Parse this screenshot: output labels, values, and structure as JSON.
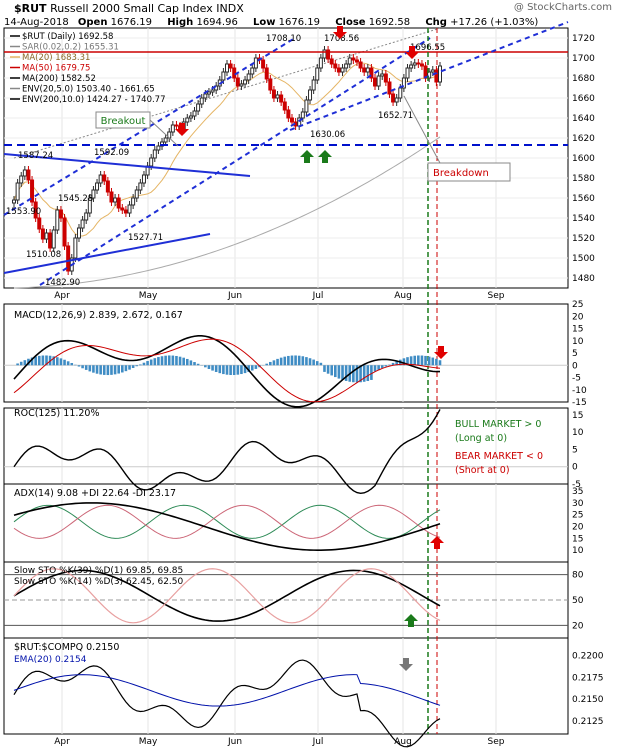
{
  "header": {
    "symbol": "$RUT",
    "name": "Russell 2000 Small Cap Index",
    "exchange": "INDX",
    "source": "@ StockCharts.com",
    "date": "14-Aug-2018",
    "open_label": "Open",
    "open": "1676.19",
    "high_label": "High",
    "high": "1694.96",
    "low_label": "Low",
    "low": "1676.19",
    "close_label": "Close",
    "close": "1692.58",
    "chg_label": "Chg",
    "chg": "+17.26 (+1.03%)"
  },
  "colors": {
    "price_up": "#2b2b2b",
    "price_down": "#cc0000",
    "ma20": "#e5b565",
    "ma50": "#cc0000",
    "ma200": "#555555",
    "trendline": "#1f2fd6",
    "resistance": "#cc0000",
    "support": "#0011cc",
    "macd_hist": "#3f8cc4",
    "green_arrow": "#1a7a1a",
    "red_arrow": "#e00000"
  },
  "chart_data": [
    {
      "type": "candlestick",
      "title": "Russell 2000 Small Cap Index",
      "period": "Daily",
      "last_value": "1692.58",
      "ylim": [
        1470,
        1730
      ],
      "yticks": [
        "1480",
        "1500",
        "1520",
        "1540",
        "1560",
        "1580",
        "1600",
        "1620",
        "1640",
        "1660",
        "1680",
        "1700",
        "1720"
      ],
      "months": [
        "Apr",
        "May",
        "Jun",
        "Jul",
        "Aug",
        "Sep"
      ],
      "legend": [
        {
          "label": "$RUT (Daily) 1692.58"
        },
        {
          "label": "SAR(0.02,0.2) 1655.31"
        },
        {
          "label": "MA(20) 1683.31"
        },
        {
          "label": "MA(50) 1679.75"
        },
        {
          "label": "MA(200) 1582.52"
        },
        {
          "label": "ENV(20,5.0) 1503.40 - 1661.65"
        },
        {
          "label": "ENV(200,10.0) 1424.27 - 1740.77"
        }
      ],
      "price_labels": [
        "1587.24",
        "1553.90",
        "1510.08",
        "1482.90",
        "1545.28",
        "1592.09",
        "1527.71",
        "1708.10",
        "1708.56",
        "1630.06",
        "1696.55",
        "1652.71"
      ],
      "annotations": [
        "Breakout",
        "Breakdown"
      ],
      "resistance_level": 1706,
      "support_level": 1613,
      "closes": [
        1558,
        1575,
        1582,
        1588,
        1578,
        1556,
        1540,
        1529,
        1519,
        1525,
        1510,
        1528,
        1548,
        1540,
        1512,
        1487,
        1500,
        1520,
        1530,
        1538,
        1545,
        1560,
        1568,
        1575,
        1583,
        1577,
        1566,
        1556,
        1560,
        1550,
        1548,
        1545,
        1553,
        1560,
        1568,
        1575,
        1583,
        1592,
        1600,
        1608,
        1612,
        1616,
        1620,
        1626,
        1633,
        1632,
        1628,
        1636,
        1640,
        1642,
        1647,
        1654,
        1660,
        1664,
        1666,
        1668,
        1672,
        1678,
        1686,
        1694,
        1690,
        1680,
        1672,
        1674,
        1678,
        1684,
        1690,
        1700,
        1698,
        1690,
        1679,
        1668,
        1660,
        1663,
        1656,
        1648,
        1640,
        1636,
        1632,
        1640,
        1646,
        1658,
        1668,
        1678,
        1690,
        1700,
        1708,
        1699,
        1694,
        1690,
        1686,
        1690,
        1694,
        1700,
        1698,
        1696,
        1690,
        1686,
        1690,
        1680,
        1672,
        1682,
        1684,
        1676,
        1664,
        1656,
        1660,
        1670,
        1680,
        1690,
        1693,
        1695,
        1694,
        1692,
        1680,
        1686,
        1688,
        1676,
        1692
      ]
    },
    {
      "type": "line",
      "name": "MACD",
      "label": "MACD(12,26,9) 2.839, 2.672, 0.167",
      "ylim": [
        -15,
        25
      ],
      "yticks": [
        "25",
        "20",
        "15",
        "10",
        "5",
        "0",
        "-5",
        "-10",
        "-15"
      ]
    },
    {
      "type": "line",
      "name": "ROC",
      "label": "ROC(125) 11.20%",
      "ylim": [
        -5,
        17
      ],
      "yticks": [
        "15",
        "10",
        "5",
        "0",
        "-5"
      ],
      "notes": [
        "BULL MARKET > 0",
        "(Long at 0)",
        "BEAR MARKET < 0",
        "(Short at 0)"
      ]
    },
    {
      "type": "line",
      "name": "ADX",
      "label": "ADX(14) 9.08 +DI 22.64 -DI 23.17",
      "ylim": [
        5,
        38
      ],
      "yticks": [
        "35",
        "30",
        "25",
        "20",
        "15",
        "10"
      ]
    },
    {
      "type": "line",
      "name": "Slow STO",
      "labels": [
        "Slow STO %K(39) %D(1) 69.85, 69.85",
        "Slow STO %K(14) %D(3) 62.45, 62.50"
      ],
      "ylim": [
        5,
        95
      ],
      "yticks": [
        "80",
        "50",
        "20"
      ]
    },
    {
      "type": "line",
      "name": "$RUT:$COMPQ",
      "label": "$RUT:$COMPQ 0.2150",
      "ema_label": "EMA(20) 0.2154",
      "ylim": [
        0.211,
        0.222
      ],
      "yticks": [
        "0.2200",
        "0.2175",
        "0.2150",
        "0.2125"
      ],
      "months": [
        "Apr",
        "May",
        "Jun",
        "Jul",
        "Aug",
        "Sep"
      ]
    }
  ]
}
